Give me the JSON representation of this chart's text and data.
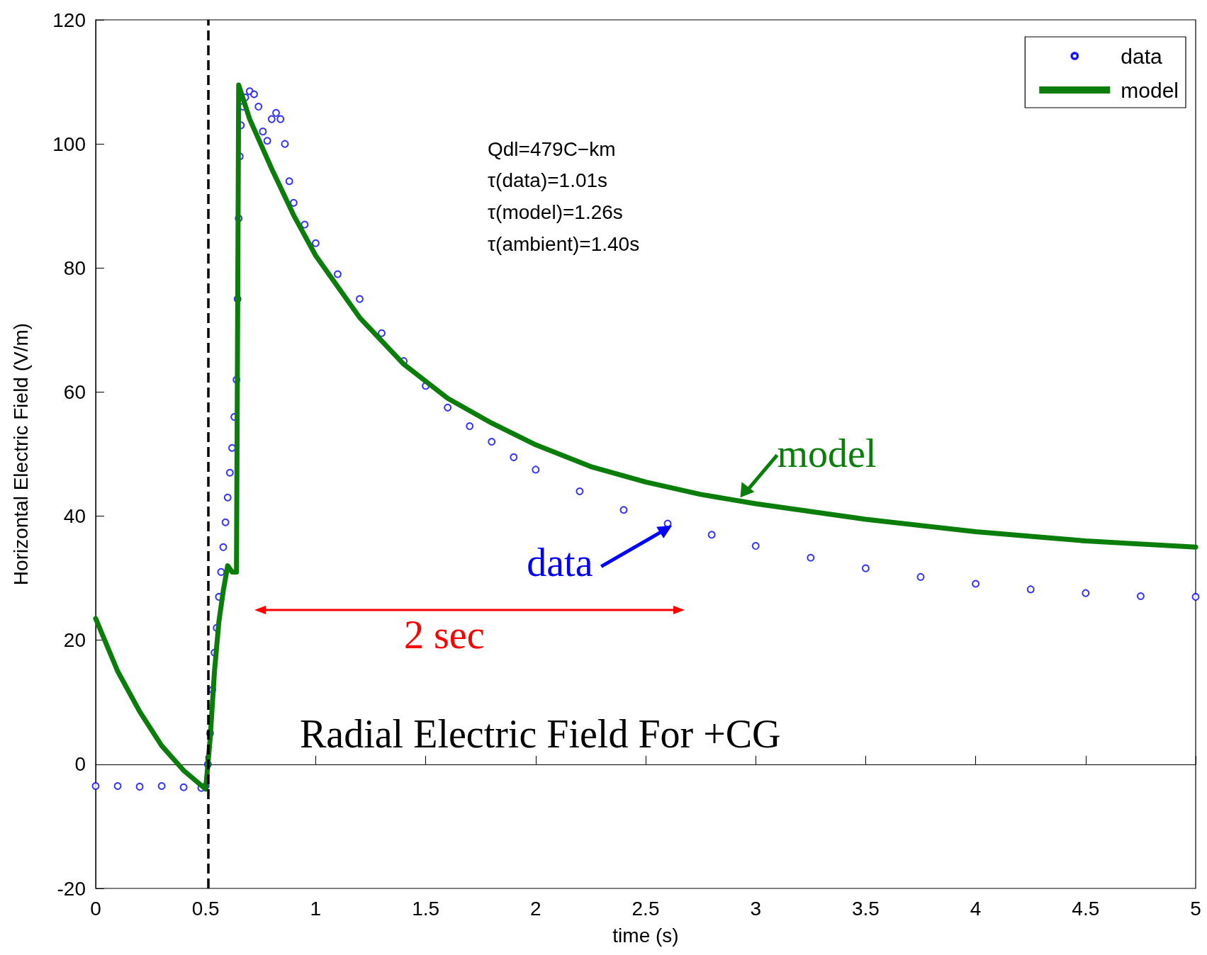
{
  "chart_data": {
    "type": "scatter",
    "xlabel": "time (s)",
    "ylabel": "Horizontal Electric Field (V/m)",
    "xlim": [
      0,
      5
    ],
    "xticks": [
      0,
      0.5,
      1,
      1.5,
      2,
      2.5,
      3,
      3.5,
      4,
      4.5,
      5
    ],
    "ylim": [
      -20,
      120
    ],
    "yticks": [
      -20,
      0,
      20,
      40,
      60,
      80,
      100,
      120
    ],
    "grid": false,
    "legend": "top right",
    "marker": "circle",
    "series": [
      {
        "name": "data",
        "color": "#0000ff",
        "x": [
          0,
          0.1,
          0.2,
          0.3,
          0.4,
          0.48,
          0.5,
          0.51,
          0.52,
          0.53,
          0.54,
          0.55,
          0.56,
          0.57,
          0.58,
          0.59,
          0.6,
          0.61,
          0.62,
          0.63,
          0.64,
          0.645,
          0.65,
          0.655,
          0.66,
          0.67,
          0.68,
          0.7,
          0.72,
          0.74,
          0.76,
          0.78,
          0.8,
          0.82,
          0.84,
          0.86,
          0.88,
          0.9,
          0.95,
          1.0,
          1.1,
          1.2,
          1.3,
          1.4,
          1.5,
          1.6,
          1.7,
          1.8,
          1.9,
          2.0,
          2.2,
          2.4,
          2.6,
          2.8,
          3.0,
          3.25,
          3.5,
          3.75,
          4.0,
          4.25,
          4.5,
          4.75,
          5.0
        ],
        "values": [
          -3.5,
          -3.5,
          -3.6,
          -3.5,
          -3.7,
          -3.8,
          -3.5,
          0,
          5,
          12,
          18,
          22,
          27,
          31,
          35,
          39,
          43,
          47,
          51,
          56,
          62,
          75,
          88,
          98,
          103,
          106,
          107.5,
          108.5,
          108,
          106,
          102,
          100.5,
          104,
          105,
          104,
          100,
          94,
          90.5,
          87,
          84,
          79,
          75,
          69.5,
          65,
          61,
          57.5,
          54.5,
          52,
          49.5,
          47.5,
          44,
          41,
          38.8,
          37,
          35.2,
          33.3,
          31.6,
          30.2,
          29.1,
          28.2,
          27.6,
          27.1,
          27
        ]
      },
      {
        "name": "model",
        "type": "line",
        "color": "#0a7d0a",
        "marker": "none",
        "line_style": "solid",
        "x": [
          0,
          0.1,
          0.2,
          0.3,
          0.4,
          0.5,
          0.52,
          0.54,
          0.56,
          0.58,
          0.6,
          0.62,
          0.64,
          0.645,
          0.65,
          0.7,
          0.8,
          0.9,
          1.0,
          1.2,
          1.4,
          1.6,
          1.8,
          2.0,
          2.25,
          2.5,
          2.75,
          3.0,
          3.5,
          4.0,
          4.5,
          5.0
        ],
        "values": [
          23.5,
          15,
          8.5,
          3,
          -1,
          -4,
          4,
          15,
          23,
          28,
          32,
          31,
          31,
          70,
          109.5,
          104,
          96,
          88.5,
          82,
          72,
          64.5,
          59,
          55,
          51.5,
          48,
          45.5,
          43.5,
          42,
          39.5,
          37.5,
          36,
          35
        ]
      }
    ],
    "ref_lines": [
      {
        "axis": "x",
        "value": 0.51,
        "color": "#000000",
        "line_style": "dashed"
      }
    ],
    "annotations": [
      "Qdl=479C−km",
      "τ(data)=1.01s",
      "τ(model)=1.26s",
      "τ(ambient)=1.40s",
      {
        "text": "model",
        "x": 2.93,
        "y": 43
      },
      {
        "text": "data",
        "x": 2.62,
        "y": 38.5
      },
      "2 sec",
      "Radial Electric Field For +CG"
    ]
  }
}
